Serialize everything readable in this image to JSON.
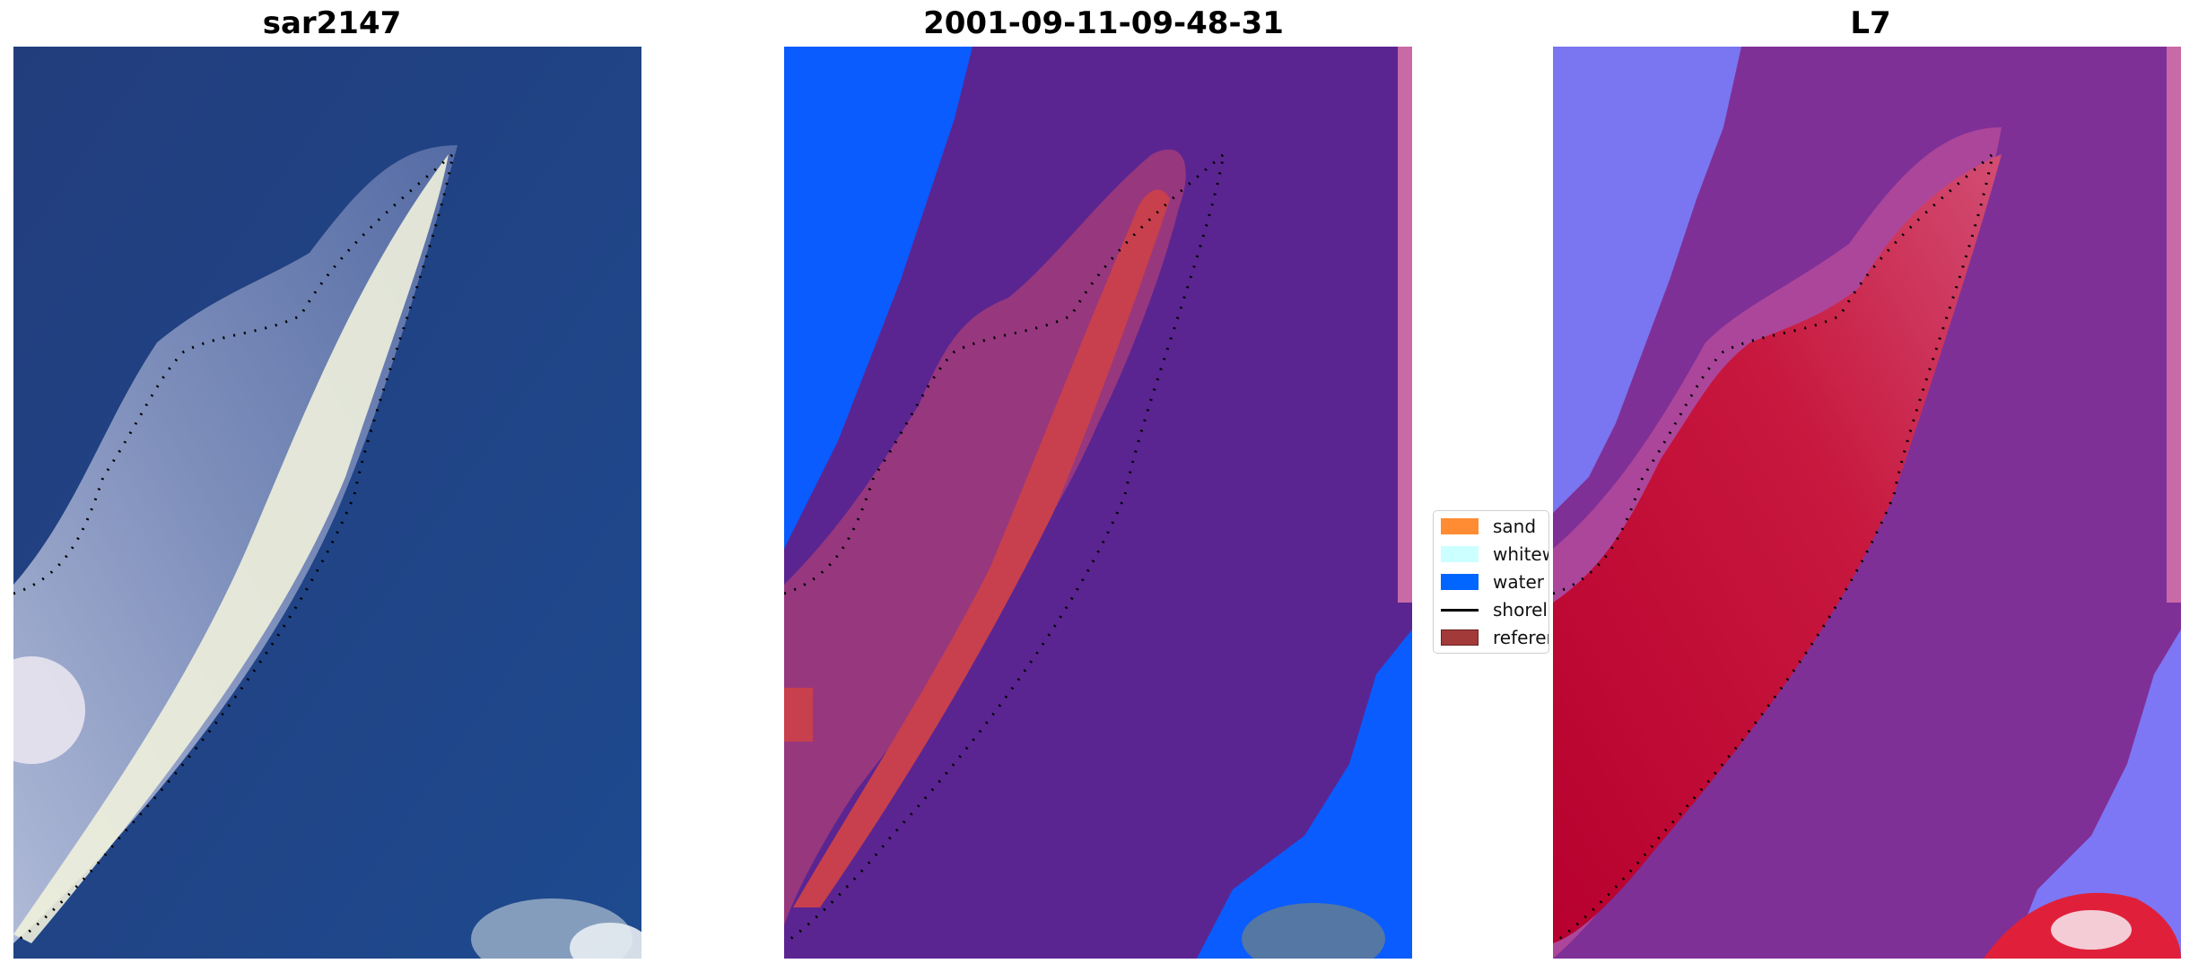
{
  "panels": [
    {
      "title": "sar2147"
    },
    {
      "title": "2001-09-11-09-48-31"
    },
    {
      "title": "L7"
    }
  ],
  "legend": {
    "items": [
      {
        "label": "sand",
        "color": "#ff8c33",
        "kind": "patch"
      },
      {
        "label": "whitewater",
        "color": "#ccffff",
        "kind": "patch"
      },
      {
        "label": "water",
        "color": "#0066ff",
        "kind": "patch"
      },
      {
        "label": "shoreline",
        "color": "#000000",
        "kind": "line"
      },
      {
        "label": "reference shoreline",
        "color": "#a33a3a",
        "kind": "patch"
      }
    ]
  },
  "colors": {
    "ocean": "#213f82",
    "classified_background": "#5a2591",
    "classified_water": "#0a5cff",
    "sand_overlay": "#b8373f",
    "index_background": "#7f3097",
    "index_high": "#c8002e",
    "index_low": "#7f7fff"
  }
}
